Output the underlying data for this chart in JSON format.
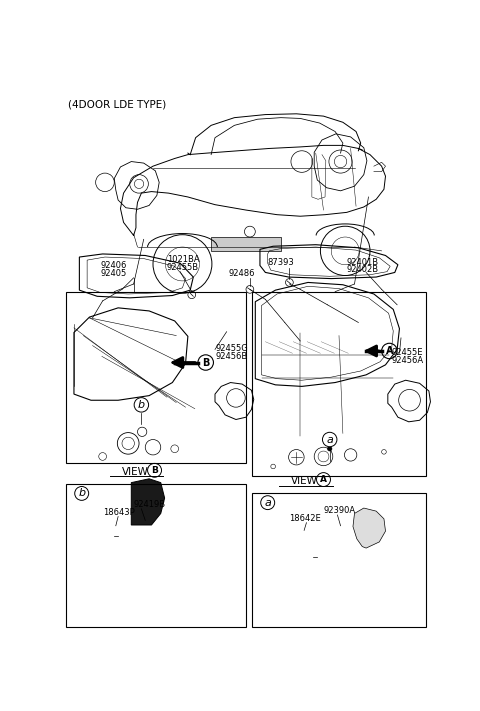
{
  "title": "(4DOOR LDE TYPE)",
  "bg_color": "#ffffff",
  "text_color": "#000000",
  "fig_width": 4.8,
  "fig_height": 7.11,
  "xlim": [
    0,
    480
  ],
  "ylim": [
    0,
    711
  ]
}
